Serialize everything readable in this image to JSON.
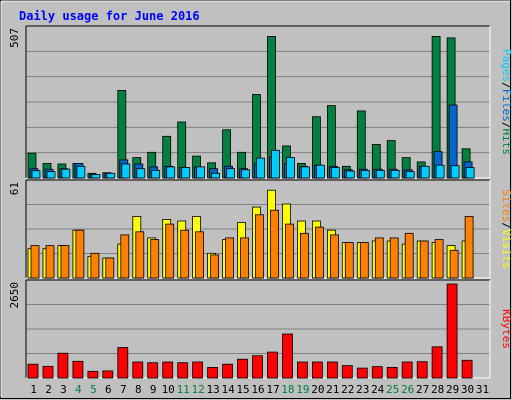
{
  "chart_data": {
    "type": "bar",
    "title": "Daily usage for June 2016",
    "days": [
      "1",
      "2",
      "3",
      "4",
      "5",
      "6",
      "7",
      "8",
      "9",
      "10",
      "11",
      "12",
      "13",
      "14",
      "15",
      "16",
      "17",
      "18",
      "19",
      "20",
      "21",
      "22",
      "23",
      "24",
      "25",
      "26",
      "27",
      "28",
      "29",
      "30",
      "31"
    ],
    "weekend_days": [
      "4",
      "5",
      "11",
      "12",
      "18",
      "19",
      "25",
      "26"
    ],
    "panels": [
      {
        "id": "top",
        "max_label": "507",
        "ymax": 507,
        "right_labels": [
          "Pages",
          "/",
          "Files",
          "/",
          "Hits"
        ],
        "right_label_colors": [
          "#00ccff",
          "#000000",
          "#0066cc",
          "#000000",
          "#008040"
        ],
        "series": [
          {
            "name": "Hits",
            "color": "#008040",
            "values": [
              85,
              50,
              48,
              50,
              16,
              18,
              300,
              70,
              88,
              143,
              192,
              75,
              52,
              165,
              88,
              286,
              485,
              110,
              50,
              210,
              248,
              40,
              230,
              115,
              128,
              70,
              55,
              485,
              480,
              100,
              0
            ]
          },
          {
            "name": "Files",
            "color": "#0066cc",
            "values": [
              32,
              30,
              32,
              50,
              12,
              16,
              62,
              48,
              38,
              40,
              36,
              38,
              32,
              40,
              32,
              48,
              72,
              50,
              40,
              44,
              40,
              28,
              30,
              30,
              30,
              28,
              40,
              90,
              250,
              55,
              0
            ]
          },
          {
            "name": "Pages",
            "color": "#00ccff",
            "values": [
              25,
              22,
              30,
              40,
              12,
              16,
              48,
              32,
              26,
              38,
              36,
              38,
              16,
              32,
              28,
              68,
              95,
              70,
              38,
              44,
              36,
              24,
              26,
              26,
              26,
              22,
              40,
              44,
              42,
              36,
              0
            ]
          }
        ]
      },
      {
        "id": "mid",
        "max_label": "61",
        "ymax": 61,
        "right_labels": [
          "Sites",
          "/",
          "Visits"
        ],
        "right_label_colors": [
          "#ff8000",
          "#000000",
          "#ffff00"
        ],
        "series": [
          {
            "name": "Visits",
            "color": "#ffff00",
            "values": [
              19,
              19,
              21,
              31,
              14,
              13,
              22,
              40,
              26,
              38,
              37,
              40,
              16,
              25,
              36,
              46,
              57,
              48,
              37,
              37,
              31,
              23,
              23,
              24,
              24,
              22,
              24,
              23,
              21,
              24,
              0
            ]
          },
          {
            "name": "Sites",
            "color": "#ff8000",
            "values": [
              21,
              21,
              21,
              31,
              16,
              13,
              28,
              30,
              25,
              35,
              31,
              30,
              15,
              26,
              26,
              41,
              44,
              35,
              29,
              33,
              28,
              23,
              23,
              26,
              26,
              29,
              24,
              25,
              18,
              40,
              0
            ]
          }
        ]
      },
      {
        "id": "bot",
        "max_label": "2650",
        "ymax": 2650,
        "right_labels": [
          "KBytes"
        ],
        "right_label_colors": [
          "#ff0000"
        ],
        "series": [
          {
            "name": "KBytes",
            "color": "#ff0000",
            "values": [
              390,
              330,
              700,
              470,
              190,
              200,
              860,
              450,
              430,
              450,
              430,
              450,
              300,
              390,
              530,
              630,
              730,
              1240,
              450,
              450,
              450,
              350,
              280,
              320,
              300,
              450,
              460,
              880,
              2650,
              500,
              0
            ]
          }
        ]
      }
    ]
  }
}
